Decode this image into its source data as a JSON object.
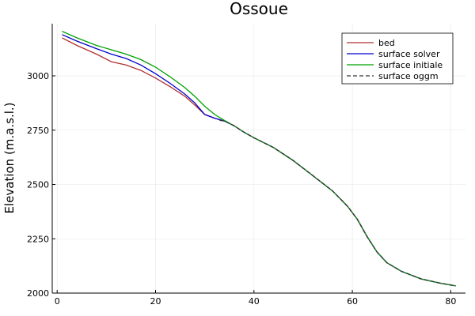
{
  "chart_data": {
    "type": "line",
    "title": "Ossoue",
    "xlabel": "",
    "ylabel": "Elevation (m.a.s.l.)",
    "xlim": [
      -1,
      83
    ],
    "ylim": [
      2000,
      3240
    ],
    "xticks": [
      0,
      20,
      40,
      60,
      80
    ],
    "yticks": [
      2000,
      2250,
      2500,
      2750,
      3000
    ],
    "grid": true,
    "legend_position": "top-right",
    "series": [
      {
        "name": "bed",
        "color": "#b03030",
        "dash": "solid",
        "x": [
          1,
          4,
          8,
          11,
          14,
          17,
          20,
          23,
          26,
          28,
          30,
          32,
          34,
          36,
          38,
          40,
          44,
          48,
          52,
          56,
          59,
          61,
          63,
          65,
          67,
          70,
          74,
          78,
          81
        ],
        "y": [
          3175,
          3140,
          3100,
          3065,
          3050,
          3025,
          2990,
          2950,
          2905,
          2865,
          2822,
          2805,
          2792,
          2770,
          2740,
          2715,
          2670,
          2610,
          2540,
          2470,
          2400,
          2340,
          2260,
          2190,
          2140,
          2100,
          2065,
          2045,
          2033
        ]
      },
      {
        "name": "surface solver",
        "color": "#0000cc",
        "dash": "solid",
        "x": [
          1,
          4,
          8,
          11,
          14,
          17,
          20,
          23,
          26,
          28,
          30,
          32,
          34,
          36,
          38,
          40,
          44,
          48,
          52,
          56,
          59,
          61,
          63,
          65,
          67,
          70,
          74,
          78,
          81
        ],
        "y": [
          3190,
          3160,
          3125,
          3100,
          3080,
          3050,
          3010,
          2965,
          2915,
          2875,
          2822,
          2805,
          2792,
          2770,
          2740,
          2715,
          2670,
          2610,
          2540,
          2470,
          2400,
          2340,
          2260,
          2190,
          2140,
          2100,
          2065,
          2045,
          2033
        ]
      },
      {
        "name": "surface initiale",
        "color": "#00a000",
        "dash": "solid",
        "x": [
          1,
          4,
          8,
          11,
          14,
          17,
          20,
          23,
          26,
          28,
          30,
          32,
          34,
          36,
          38,
          40,
          44,
          48,
          52,
          56,
          59,
          61,
          63,
          65,
          67,
          70,
          74,
          78,
          81
        ],
        "y": [
          3205,
          3175,
          3140,
          3120,
          3100,
          3075,
          3040,
          2995,
          2945,
          2905,
          2860,
          2822,
          2795,
          2770,
          2740,
          2715,
          2670,
          2610,
          2540,
          2470,
          2400,
          2340,
          2260,
          2190,
          2140,
          2100,
          2065,
          2045,
          2033
        ]
      },
      {
        "name": "surface oggm",
        "color": "#333333",
        "dash": "dashed",
        "x": [
          33,
          34,
          36,
          38,
          40,
          44,
          48,
          52,
          56,
          59,
          61,
          63,
          65,
          67,
          70,
          74,
          78,
          81
        ],
        "y": [
          2795,
          2792,
          2770,
          2740,
          2715,
          2670,
          2610,
          2540,
          2470,
          2400,
          2340,
          2260,
          2190,
          2140,
          2100,
          2065,
          2045,
          2033
        ]
      }
    ]
  }
}
